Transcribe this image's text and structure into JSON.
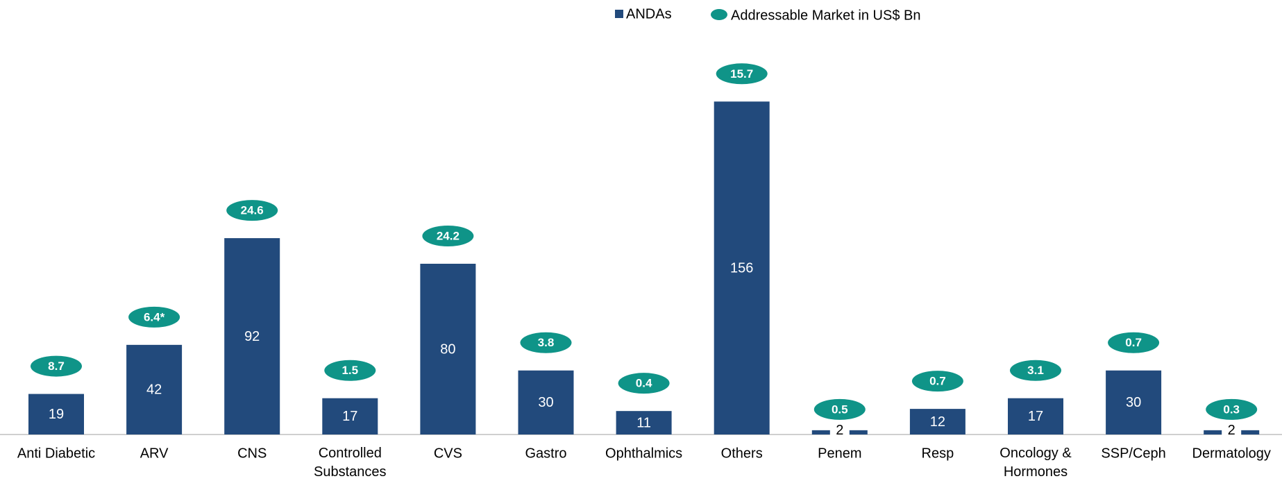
{
  "chart_data": {
    "type": "bar",
    "categories": [
      "Anti Diabetic",
      "ARV",
      "CNS",
      "Controlled Substances",
      "CVS",
      "Gastro",
      "Ophthalmics",
      "Others",
      "Penem",
      "Resp",
      "Oncology & Hormones",
      "SSP/Ceph",
      "Dermatology"
    ],
    "series": [
      {
        "name": "ANDAs",
        "color": "#224a7c",
        "values": [
          19,
          42,
          92,
          17,
          80,
          30,
          11,
          156,
          2,
          12,
          17,
          30,
          2
        ]
      },
      {
        "name": "Addressable Market in US$ Bn",
        "color": "#0f9488",
        "values": [
          8.7,
          6.4,
          24.6,
          1.5,
          24.2,
          3.8,
          0.4,
          15.7,
          0.5,
          0.7,
          3.1,
          0.7,
          0.3
        ],
        "value_labels": [
          "8.7",
          "6.4*",
          "24.6",
          "1.5",
          "24.2",
          "3.8",
          "0.4",
          "15.7",
          "0.5",
          "0.7",
          "3.1",
          "0.7",
          "0.3"
        ]
      }
    ]
  }
}
